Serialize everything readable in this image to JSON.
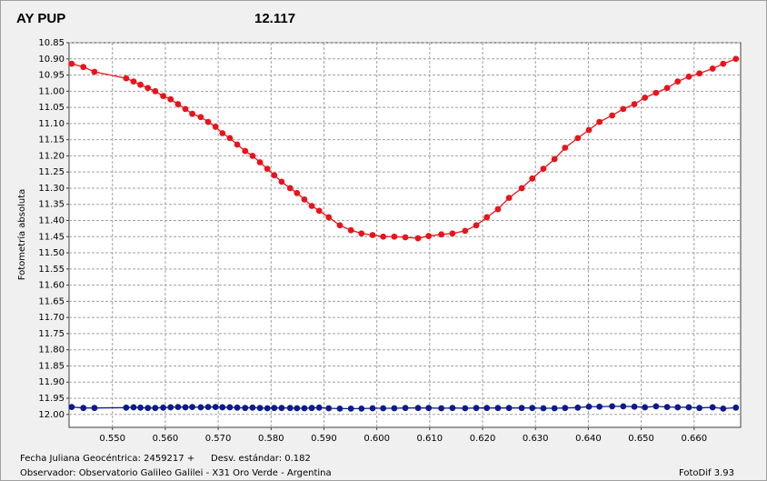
{
  "chart_data": {
    "type": "line",
    "title": "AY PUP",
    "subtitle": "12.117",
    "ylabel": "Fotometría absoluta",
    "footer_left_1": "Fecha Juliana Geocéntrica: 2459217 +",
    "footer_left_2": "Desv. estándar: 0.182",
    "footer_left_3": "Observador: Observatorio Galileo Galilei - X31 Oro Verde - Argentina",
    "footer_right": "FotoDif 3.93",
    "title_color": "#e01010",
    "subtitle_color": "#1a237e",
    "grid": true,
    "xlim": [
      0.5418,
      0.6688
    ],
    "ylim": [
      12.04,
      10.85
    ],
    "xticks": [
      {
        "value": 0.55,
        "label": "0.550"
      },
      {
        "value": 0.56,
        "label": "0.560"
      },
      {
        "value": 0.57,
        "label": "0.570"
      },
      {
        "value": 0.58,
        "label": "0.580"
      },
      {
        "value": 0.59,
        "label": "0.590"
      },
      {
        "value": 0.6,
        "label": "0.600"
      },
      {
        "value": 0.61,
        "label": "0.610"
      },
      {
        "value": 0.62,
        "label": "0.620"
      },
      {
        "value": 0.63,
        "label": "0.630"
      },
      {
        "value": 0.64,
        "label": "0.640"
      },
      {
        "value": 0.65,
        "label": "0.650"
      },
      {
        "value": 0.66,
        "label": "0.660"
      }
    ],
    "yticks": [
      10.85,
      {
        "value": 10.9,
        "label": "10.90"
      },
      10.95,
      {
        "value": 11.0,
        "label": "11.00"
      },
      11.05,
      {
        "value": 11.1,
        "label": "11.10"
      },
      11.15,
      {
        "value": 11.2,
        "label": "11.20"
      },
      11.25,
      {
        "value": 11.3,
        "label": "11.30"
      },
      11.35,
      {
        "value": 11.4,
        "label": "11.40"
      },
      11.45,
      {
        "value": 11.5,
        "label": "11.50"
      },
      11.55,
      {
        "value": 11.6,
        "label": "11.60"
      },
      11.65,
      {
        "value": 11.7,
        "label": "11.70"
      },
      11.75,
      {
        "value": 11.8,
        "label": "11.80"
      },
      11.85,
      {
        "value": 11.9,
        "label": "11.90"
      },
      11.95,
      {
        "value": 12.0,
        "label": "12.00"
      }
    ],
    "x": [
      0.5423,
      0.5445,
      0.5466,
      0.5526,
      0.554,
      0.5553,
      0.5567,
      0.5581,
      0.5596,
      0.561,
      0.5624,
      0.5638,
      0.5651,
      0.5667,
      0.5681,
      0.5695,
      0.5708,
      0.5722,
      0.5736,
      0.5751,
      0.5765,
      0.5779,
      0.5793,
      0.5806,
      0.582,
      0.5836,
      0.5849,
      0.5863,
      0.5877,
      0.5891,
      0.5909,
      0.593,
      0.5951,
      0.5971,
      0.5992,
      0.6012,
      0.6033,
      0.6054,
      0.6078,
      0.6098,
      0.6122,
      0.6143,
      0.6167,
      0.6188,
      0.6208,
      0.6229,
      0.625,
      0.6274,
      0.6294,
      0.6315,
      0.6336,
      0.6356,
      0.638,
      0.6401,
      0.6421,
      0.6445,
      0.6466,
      0.6487,
      0.6507,
      0.6528,
      0.6549,
      0.6569,
      0.659,
      0.661,
      0.6635,
      0.6655,
      0.6679
    ],
    "series": [
      {
        "color": "#e8141c",
        "values": [
          10.915,
          10.925,
          10.94,
          10.96,
          10.97,
          10.98,
          10.99,
          11.0,
          11.015,
          11.025,
          11.04,
          11.055,
          11.07,
          11.08,
          11.095,
          11.11,
          11.13,
          11.145,
          11.165,
          11.185,
          11.2,
          11.22,
          11.24,
          11.26,
          11.28,
          11.3,
          11.315,
          11.335,
          11.355,
          11.37,
          11.39,
          11.415,
          11.43,
          11.44,
          11.445,
          11.45,
          11.45,
          11.452,
          11.455,
          11.448,
          11.443,
          11.44,
          11.432,
          11.415,
          11.39,
          11.365,
          11.33,
          11.3,
          11.27,
          11.24,
          11.21,
          11.175,
          11.145,
          11.12,
          11.095,
          11.075,
          11.055,
          11.04,
          11.02,
          11.005,
          10.99,
          10.97,
          10.955,
          10.945,
          10.93,
          10.915,
          10.9
        ]
      },
      {
        "color": "#0d1a8c",
        "values": [
          11.977,
          11.98,
          11.98,
          11.979,
          11.978,
          11.979,
          11.98,
          11.98,
          11.979,
          11.978,
          11.977,
          11.978,
          11.977,
          11.978,
          11.977,
          11.977,
          11.978,
          11.978,
          11.979,
          11.98,
          11.979,
          11.98,
          11.981,
          11.98,
          11.98,
          11.98,
          11.981,
          11.981,
          11.98,
          11.979,
          11.981,
          11.982,
          11.982,
          11.982,
          11.981,
          11.981,
          11.981,
          11.98,
          11.98,
          11.98,
          11.981,
          11.98,
          11.981,
          11.98,
          11.98,
          11.98,
          11.98,
          11.98,
          11.98,
          11.981,
          11.981,
          11.98,
          11.979,
          11.976,
          11.976,
          11.975,
          11.975,
          11.976,
          11.978,
          11.975,
          11.977,
          11.978,
          11.978,
          11.98,
          11.978,
          11.982,
          11.979
        ]
      }
    ]
  }
}
